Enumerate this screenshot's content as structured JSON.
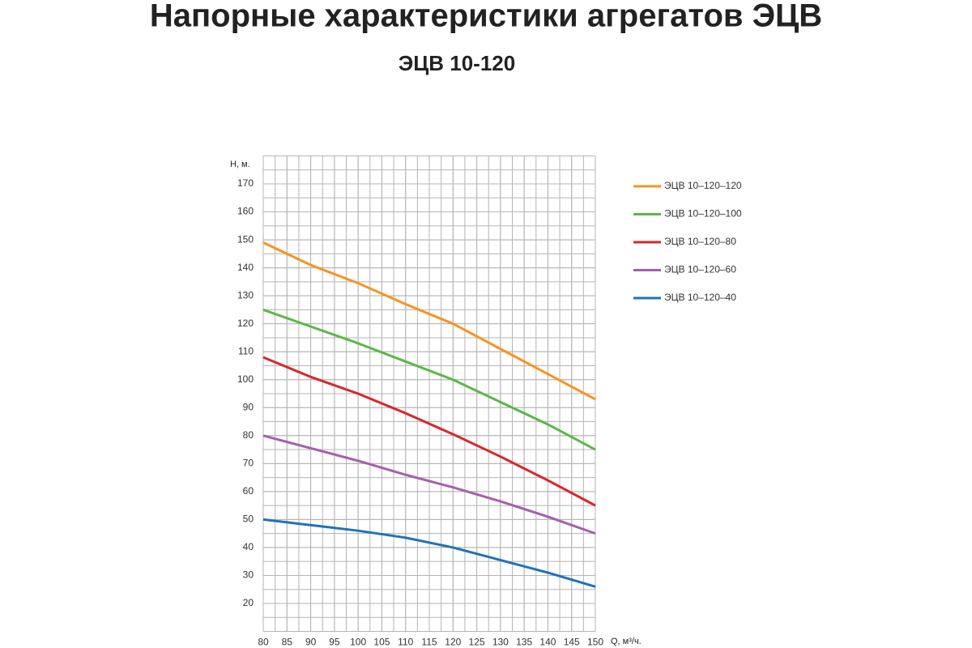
{
  "chart_data": {
    "type": "line",
    "title": "Напорные характеристики агрегатов ЭЦВ",
    "subtitle": "ЭЦВ 10-120",
    "y_label": "Н, м.",
    "x_label": "Q, м³/ч.",
    "x": [
      80,
      90,
      100,
      110,
      120,
      130,
      140,
      150
    ],
    "series": [
      {
        "name": "ЭЦВ 10–120–120",
        "color": "#f7941d",
        "values": [
          149,
          141,
          134.5,
          127,
          120,
          111,
          102,
          93
        ]
      },
      {
        "name": "ЭЦВ 10–120–100",
        "color": "#5bb847",
        "values": [
          125,
          119,
          113,
          106.5,
          100,
          92,
          84,
          75
        ]
      },
      {
        "name": "ЭЦВ 10–120–80",
        "color": "#d9262b",
        "values": [
          108,
          101,
          95,
          88,
          80.5,
          72.5,
          64,
          55
        ]
      },
      {
        "name": "ЭЦВ 10–120–60",
        "color": "#a65fae",
        "values": [
          80,
          75.5,
          71,
          66,
          61.5,
          56.5,
          51,
          45
        ]
      },
      {
        "name": "ЭЦВ 10–120–40",
        "color": "#1f73b7",
        "values": [
          50,
          48,
          46,
          43.5,
          40,
          35.5,
          31,
          26
        ]
      }
    ],
    "xlim": [
      80,
      150
    ],
    "xticks": [
      80,
      85,
      90,
      95,
      100,
      105,
      110,
      115,
      120,
      125,
      130,
      135,
      140,
      145,
      150
    ],
    "ylim": [
      10,
      180
    ],
    "yticks": [
      20,
      30,
      40,
      50,
      60,
      70,
      80,
      90,
      100,
      110,
      120,
      130,
      140,
      150,
      160,
      170
    ],
    "grid": true,
    "legend": "right"
  }
}
